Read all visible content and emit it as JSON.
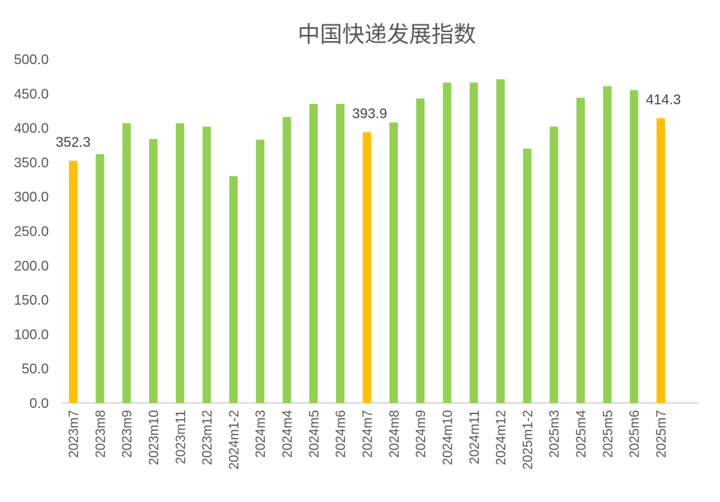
{
  "chart_data": {
    "type": "bar",
    "title": "中国快递发展指数",
    "xlabel": "",
    "ylabel": "",
    "ylim": [
      0,
      500
    ],
    "yticks": [
      "0.0",
      "50.0",
      "100.0",
      "150.0",
      "200.0",
      "250.0",
      "300.0",
      "350.0",
      "400.0",
      "450.0",
      "500.0"
    ],
    "grid": false,
    "categories": [
      "2023m7",
      "2023m8",
      "2023m9",
      "2023m10",
      "2023m11",
      "2023m12",
      "2024m1-2",
      "2024m3",
      "2024m4",
      "2024m5",
      "2024m6",
      "2024m7",
      "2024m8",
      "2024m9",
      "2024m10",
      "2024m11",
      "2024m12",
      "2025m1-2",
      "2025m3",
      "2025m4",
      "2025m5",
      "2025m6",
      "2025m7"
    ],
    "values": [
      352.3,
      362,
      407,
      384,
      407,
      402,
      330,
      383,
      416,
      435,
      435,
      393.9,
      408,
      443,
      466,
      466,
      471,
      370,
      402,
      444,
      461,
      455,
      414.3
    ],
    "highlight": [
      0,
      11,
      22
    ],
    "data_labels": {
      "0": "352.3",
      "11": "393.9",
      "22": "414.3"
    },
    "colors": {
      "normal": "#92D050",
      "highlight": "#FFC000",
      "axis": "#D9D9D9"
    }
  }
}
